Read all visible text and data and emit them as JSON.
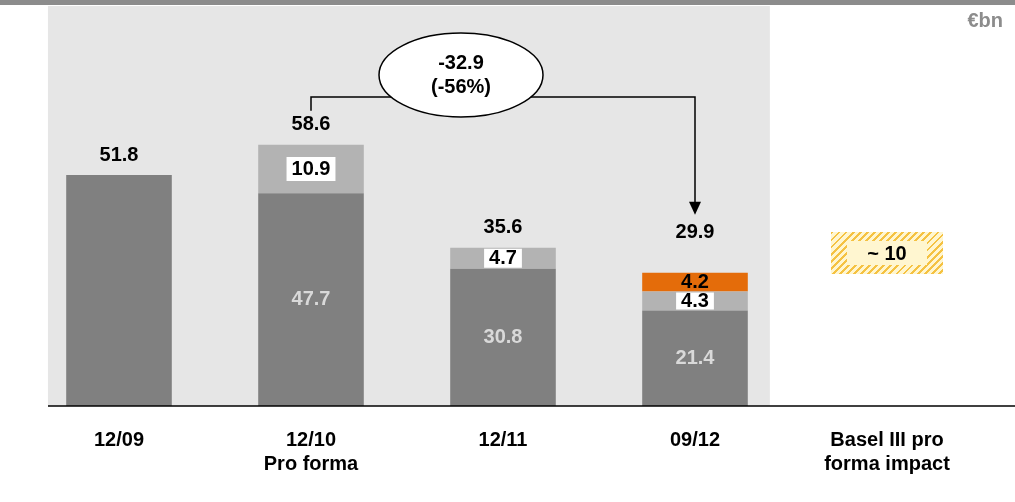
{
  "chart_data": {
    "type": "bar",
    "stacked": true,
    "categories": [
      "12/09",
      "12/10\nPro forma",
      "12/11",
      "09/12",
      "Basel III pro\nforma impact"
    ],
    "series": [
      {
        "color": "#808080",
        "values": [
          51.8,
          47.7,
          30.8,
          21.4,
          null
        ],
        "value_labels": [
          null,
          "47.7",
          "30.8",
          "21.4",
          null
        ]
      },
      {
        "color": "#b3b3b3",
        "values": [
          null,
          10.9,
          4.7,
          4.3,
          null
        ],
        "value_labels": [
          null,
          "10.9",
          "4.7",
          "4.3",
          null
        ]
      },
      {
        "color": "#e46c0a",
        "values": [
          null,
          null,
          null,
          4.2,
          null
        ],
        "value_labels": [
          null,
          null,
          null,
          "4.2",
          null
        ]
      }
    ],
    "totals": [
      "51.8",
      "58.6",
      "35.6",
      "29.9",
      null
    ],
    "annotations": [
      "€bn",
      "-32.9\n(-56%)",
      "~ 10"
    ],
    "bands": [
      {
        "axis": "x",
        "from": "12/09",
        "to": "09/12",
        "color": "#e6e6e6"
      }
    ],
    "grid": false,
    "legend": false
  }
}
